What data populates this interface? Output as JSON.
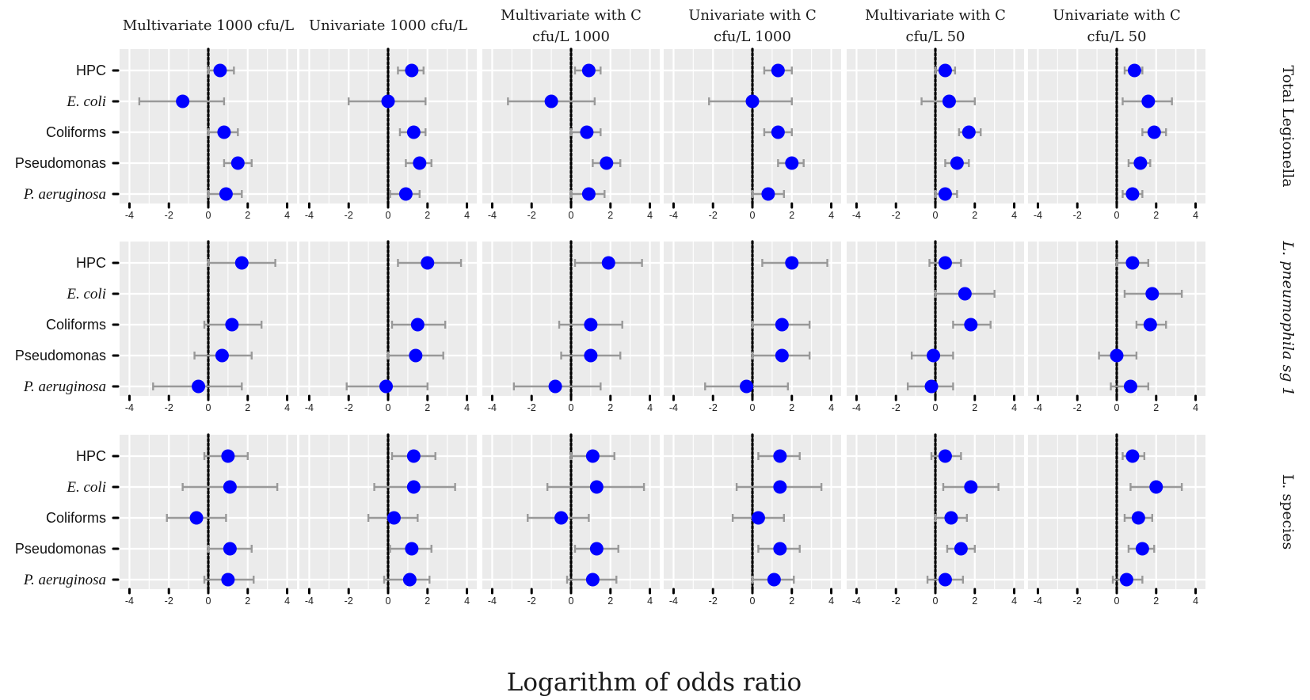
{
  "chart_data": {
    "type": "scatter",
    "subtype": "forest-plot",
    "xlabel": "Logarithm of odds ratio",
    "xlim": [
      -4.5,
      4.5
    ],
    "xticks": [
      -4,
      -2,
      0,
      2,
      4
    ],
    "xtick_labels": [
      "-4",
      "-2",
      "0",
      "2",
      "4"
    ],
    "reference_line": 0,
    "point_color": "#0000ff",
    "errorbar_color": "#999999",
    "panel_bg": "#ebebeb",
    "grid_color": "#ffffff",
    "categories": [
      {
        "label": "HPC",
        "italic": false
      },
      {
        "label": "E. coli",
        "italic": true
      },
      {
        "label": "Coliforms",
        "italic": false
      },
      {
        "label": "Pseudomonas",
        "italic": false
      },
      {
        "label": "P. aeruginosa",
        "italic": true
      }
    ],
    "columns": [
      {
        "title_lines": [
          "Multivariate 1000 cfu/L"
        ]
      },
      {
        "title_lines": [
          "Univariate 1000 cfu/L"
        ]
      },
      {
        "title_lines": [
          "Multivariate with C",
          "cfu/L 1000"
        ]
      },
      {
        "title_lines": [
          "Univariate with C",
          "cfu/L 1000"
        ]
      },
      {
        "title_lines": [
          "Multivariate with C",
          "cfu/L 50"
        ]
      },
      {
        "title_lines": [
          "Univariate with C",
          "cfu/L 50"
        ]
      }
    ],
    "rows": [
      {
        "title": "Total Legionella",
        "italic": false
      },
      {
        "title": "L. pneumophila sg 1",
        "italic": true
      },
      {
        "title": "L. species",
        "italic": false
      }
    ],
    "panels": [
      [
        [
          [
            0.6,
            0,
            1.3
          ],
          [
            -1.3,
            -3.5,
            0.8
          ],
          [
            0.8,
            0,
            1.5
          ],
          [
            1.5,
            0.8,
            2.2
          ],
          [
            0.9,
            0,
            1.7
          ]
        ],
        [
          [
            1.2,
            0.5,
            1.8
          ],
          [
            0,
            -2,
            1.9
          ],
          [
            1.3,
            0.6,
            1.9
          ],
          [
            1.6,
            0.9,
            2.2
          ],
          [
            0.9,
            0.1,
            1.6
          ]
        ],
        [
          [
            0.9,
            0.2,
            1.5
          ],
          [
            -1,
            -3.2,
            1.2
          ],
          [
            0.8,
            0,
            1.5
          ],
          [
            1.8,
            1.1,
            2.5
          ],
          [
            0.9,
            0,
            1.7
          ]
        ],
        [
          [
            1.3,
            0.6,
            2.0
          ],
          [
            0,
            -2.2,
            2
          ],
          [
            1.3,
            0.6,
            2.0
          ],
          [
            2,
            1.3,
            2.6
          ],
          [
            0.8,
            0,
            1.6
          ]
        ],
        [
          [
            0.5,
            0,
            1.0
          ],
          [
            0.7,
            -0.7,
            2.0
          ],
          [
            1.7,
            1.2,
            2.3
          ],
          [
            1.1,
            0.5,
            1.7
          ],
          [
            0.5,
            0,
            1.1
          ]
        ],
        [
          [
            0.9,
            0.4,
            1.3
          ],
          [
            1.6,
            0.3,
            2.8
          ],
          [
            1.9,
            1.3,
            2.5
          ],
          [
            1.2,
            0.6,
            1.7
          ],
          [
            0.8,
            0.3,
            1.3
          ]
        ]
      ],
      [
        [
          [
            1.7,
            0,
            3.4
          ],
          [
            null,
            null,
            null
          ],
          [
            1.2,
            -0.2,
            2.7
          ],
          [
            0.7,
            -0.7,
            2.2
          ],
          [
            -0.5,
            -2.8,
            1.7
          ]
        ],
        [
          [
            2,
            0.5,
            3.7
          ],
          [
            null,
            null,
            null
          ],
          [
            1.5,
            0.2,
            2.9
          ],
          [
            1.4,
            0,
            2.8
          ],
          [
            -0.1,
            -2.1,
            2.0
          ]
        ],
        [
          [
            1.9,
            0.2,
            3.6
          ],
          [
            null,
            null,
            null
          ],
          [
            1.0,
            -0.6,
            2.6
          ],
          [
            1.0,
            -0.5,
            2.5
          ],
          [
            -0.8,
            -2.9,
            1.5
          ]
        ],
        [
          [
            2,
            0.5,
            3.8
          ],
          [
            null,
            null,
            null
          ],
          [
            1.5,
            0,
            2.9
          ],
          [
            1.5,
            0,
            2.9
          ],
          [
            -0.3,
            -2.4,
            1.8
          ]
        ],
        [
          [
            0.5,
            -0.3,
            1.3
          ],
          [
            1.5,
            0,
            3.0
          ],
          [
            1.8,
            0.9,
            2.8
          ],
          [
            -0.1,
            -1.2,
            0.9
          ],
          [
            -0.2,
            -1.4,
            0.9
          ]
        ],
        [
          [
            0.8,
            0,
            1.6
          ],
          [
            1.8,
            0.4,
            3.3
          ],
          [
            1.7,
            1.0,
            2.5
          ],
          [
            0,
            -0.9,
            1.0
          ],
          [
            0.7,
            -0.3,
            1.6
          ]
        ]
      ],
      [
        [
          [
            1,
            -0.2,
            2.0
          ],
          [
            1.1,
            -1.3,
            3.5
          ],
          [
            -0.6,
            -2.1,
            0.9
          ],
          [
            1.1,
            0,
            2.2
          ],
          [
            1,
            -0.2,
            2.3
          ]
        ],
        [
          [
            1.3,
            0.2,
            2.4
          ],
          [
            1.3,
            -0.7,
            3.4
          ],
          [
            0.3,
            -1,
            1.5
          ],
          [
            1.2,
            0.1,
            2.2
          ],
          [
            1.1,
            -0.2,
            2.1
          ]
        ],
        [
          [
            1.1,
            0,
            2.2
          ],
          [
            1.3,
            -1.2,
            3.7
          ],
          [
            -0.5,
            -2.2,
            0.9
          ],
          [
            1.3,
            0.2,
            2.4
          ],
          [
            1.1,
            -0.2,
            2.3
          ]
        ],
        [
          [
            1.4,
            0.3,
            2.4
          ],
          [
            1.4,
            -0.8,
            3.5
          ],
          [
            0.3,
            -1,
            1.6
          ],
          [
            1.4,
            0.3,
            2.4
          ],
          [
            1.1,
            0,
            2.1
          ]
        ],
        [
          [
            0.5,
            -0.2,
            1.3
          ],
          [
            1.8,
            0.4,
            3.2
          ],
          [
            0.8,
            0,
            1.6
          ],
          [
            1.3,
            0.6,
            2.0
          ],
          [
            0.5,
            -0.4,
            1.4
          ]
        ],
        [
          [
            0.8,
            0.3,
            1.4
          ],
          [
            2,
            0.7,
            3.3
          ],
          [
            1.1,
            0.4,
            1.8
          ],
          [
            1.3,
            0.6,
            1.9
          ],
          [
            0.5,
            -0.2,
            1.3
          ]
        ]
      ]
    ]
  }
}
